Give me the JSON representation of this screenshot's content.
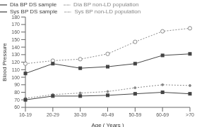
{
  "chart_data": {
    "type": "line",
    "xlabel": "Age  ( Years )",
    "ylabel": "Blood Pressure",
    "categories": [
      "16-19",
      "20-29",
      "30-39",
      "40-49",
      "50-59",
      "60-69",
      ">70"
    ],
    "series": [
      {
        "name": "Sys BP non-LD population",
        "color": "#888888",
        "marker": "circle",
        "line_style": "dotted",
        "values": [
          118,
          122,
          124,
          131,
          147,
          161,
          165
        ]
      },
      {
        "name": "Dia BP non-LD population",
        "color": "#888888",
        "marker": "dot",
        "line_style": "dotted",
        "values": [
          72,
          77,
          79,
          81,
          86,
          90,
          89
        ]
      },
      {
        "name": "Sys BP DS sample",
        "color": "#444444",
        "marker": "square",
        "line_style": "solid",
        "values": [
          105,
          118,
          112,
          114,
          118,
          129,
          131
        ]
      },
      {
        "name": "Dia BP DS sample",
        "color": "#444444",
        "marker": "square",
        "line_style": "solid",
        "values": [
          70,
          75,
          75,
          76,
          78,
          80,
          78
        ]
      }
    ],
    "ylim": [
      60,
      180
    ],
    "yticks": [
      60,
      70,
      80,
      90,
      100,
      110,
      120,
      130,
      140,
      150,
      160,
      170,
      180
    ],
    "grid": false,
    "legend": "upper left"
  }
}
